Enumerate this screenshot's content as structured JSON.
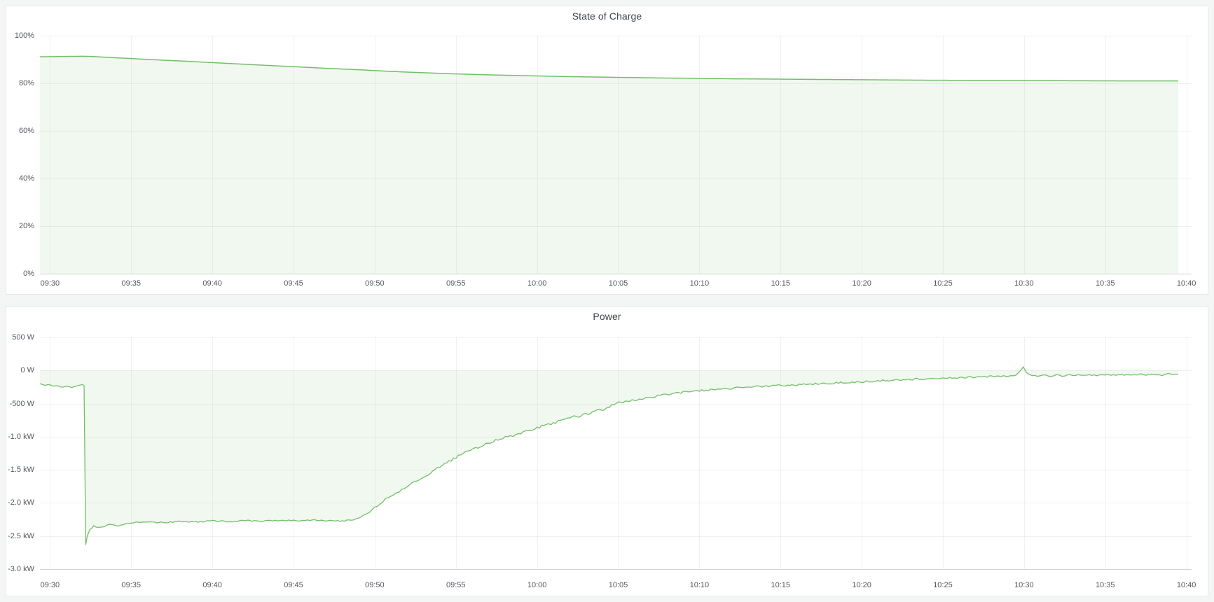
{
  "page": {
    "background_color": "#f4f5f5",
    "panel_background": "#ffffff",
    "panel_border_color": "#e4e8ea"
  },
  "chart_data": [
    {
      "type": "area",
      "title": "State of Charge",
      "legend": "none",
      "grid": true,
      "x_axis": {
        "domain": [
          -0.62,
          70.32
        ],
        "unit": "time",
        "tick_minutes": [
          0,
          5,
          10,
          15,
          20,
          25,
          30,
          35,
          40,
          45,
          50,
          55,
          60,
          65,
          70
        ],
        "tick_labels": [
          "09:30",
          "09:35",
          "09:40",
          "09:45",
          "09:50",
          "09:55",
          "10:00",
          "10:05",
          "10:10",
          "10:15",
          "10:20",
          "10:25",
          "10:30",
          "10:35",
          "10:40"
        ]
      },
      "y_axis": {
        "domain": [
          0,
          100
        ],
        "unit": "percent",
        "tick_values": [
          100,
          80,
          60,
          40,
          20,
          0
        ],
        "tick_labels": [
          "100%",
          "80%",
          "60%",
          "40%",
          "20%",
          "0%"
        ]
      },
      "style": {
        "grid_color": "rgba(0,0,0,0.055)",
        "axis_color": "rgba(0,0,0,0.12)"
      },
      "series": [
        {
          "name": "State of Charge",
          "line_color": "#73bf69",
          "fill_color": "rgba(115,191,105,0.11)",
          "line_width": 1.5,
          "points": [
            [
              -0.62,
              91.15
            ],
            [
              0,
              91.2
            ],
            [
              1,
              91.3
            ],
            [
              2,
              91.35
            ],
            [
              2.5,
              91.3
            ],
            [
              3,
              91.1
            ],
            [
              4,
              90.75
            ],
            [
              5,
              90.4
            ],
            [
              6,
              90.05
            ],
            [
              7,
              89.7
            ],
            [
              8,
              89.4
            ],
            [
              9,
              89.05
            ],
            [
              10,
              88.7
            ],
            [
              11,
              88.35
            ],
            [
              12,
              88.0
            ],
            [
              13,
              87.65
            ],
            [
              14,
              87.3
            ],
            [
              15,
              87.0
            ],
            [
              16,
              86.65
            ],
            [
              17,
              86.3
            ],
            [
              18,
              86.0
            ],
            [
              19,
              85.7
            ],
            [
              20,
              85.35
            ],
            [
              21,
              85.0
            ],
            [
              22,
              84.7
            ],
            [
              23,
              84.45
            ],
            [
              24,
              84.2
            ],
            [
              25,
              83.95
            ],
            [
              26,
              83.75
            ],
            [
              27,
              83.55
            ],
            [
              28,
              83.4
            ],
            [
              29,
              83.25
            ],
            [
              30,
              83.1
            ],
            [
              31,
              82.95
            ],
            [
              32,
              82.8
            ],
            [
              33,
              82.7
            ],
            [
              34,
              82.6
            ],
            [
              35,
              82.5
            ],
            [
              36,
              82.4
            ],
            [
              37,
              82.3
            ],
            [
              38,
              82.2
            ],
            [
              39,
              82.15
            ],
            [
              40,
              82.05
            ],
            [
              41,
              82.0
            ],
            [
              42,
              81.9
            ],
            [
              43,
              81.85
            ],
            [
              44,
              81.8
            ],
            [
              45,
              81.75
            ],
            [
              46,
              81.7
            ],
            [
              47,
              81.65
            ],
            [
              48,
              81.6
            ],
            [
              49,
              81.55
            ],
            [
              50,
              81.5
            ],
            [
              52,
              81.4
            ],
            [
              54,
              81.3
            ],
            [
              56,
              81.25
            ],
            [
              58,
              81.2
            ],
            [
              60,
              81.15
            ],
            [
              62,
              81.1
            ],
            [
              64,
              81.05
            ],
            [
              66,
              81.0
            ],
            [
              68,
              81.0
            ],
            [
              69.5,
              81.0
            ]
          ]
        }
      ]
    },
    {
      "type": "area",
      "title": "Power",
      "legend": "none",
      "grid": true,
      "x_axis": {
        "domain": [
          -0.62,
          70.32
        ],
        "unit": "time",
        "tick_minutes": [
          0,
          5,
          10,
          15,
          20,
          25,
          30,
          35,
          40,
          45,
          50,
          55,
          60,
          65,
          70
        ],
        "tick_labels": [
          "09:30",
          "09:35",
          "09:40",
          "09:45",
          "09:50",
          "09:55",
          "10:00",
          "10:05",
          "10:10",
          "10:15",
          "10:20",
          "10:25",
          "10:30",
          "10:35",
          "10:40"
        ]
      },
      "y_axis": {
        "domain": [
          -3000,
          500
        ],
        "unit": "watts",
        "tick_values": [
          500,
          0,
          -500,
          -1000,
          -1500,
          -2000,
          -2500,
          -3000
        ],
        "tick_labels": [
          "500 W",
          "0 W",
          "-500 W",
          "-1.0 kW",
          "-1.5 kW",
          "-2.0 kW",
          "-2.5 kW",
          "-3.0 kW"
        ]
      },
      "style": {
        "grid_color": "rgba(0,0,0,0.055)",
        "axis_color": "rgba(0,0,0,0.12)"
      },
      "series": [
        {
          "name": "Power",
          "line_color": "#73bf69",
          "fill_color": "rgba(115,191,105,0.11)",
          "line_width": 1.3,
          "points": [
            [
              -0.62,
              -210,
              12
            ],
            [
              0,
              -225,
              13
            ],
            [
              0.5,
              -242,
              14
            ],
            [
              1,
              -238,
              15
            ],
            [
              1.5,
              -248,
              13
            ],
            [
              1.85,
              -228,
              8
            ],
            [
              2.0,
              -210,
              5
            ],
            [
              2.1,
              -230,
              0
            ],
            [
              2.2,
              -2630,
              0
            ],
            [
              2.3,
              -2500,
              4
            ],
            [
              2.45,
              -2405,
              8
            ],
            [
              2.7,
              -2350,
              10
            ],
            [
              3.1,
              -2365,
              11
            ],
            [
              3.6,
              -2330,
              10
            ],
            [
              4.2,
              -2345,
              10
            ],
            [
              5,
              -2300,
              10
            ],
            [
              6,
              -2292,
              10
            ],
            [
              7,
              -2298,
              10
            ],
            [
              8,
              -2282,
              10
            ],
            [
              9,
              -2288,
              10
            ],
            [
              10,
              -2272,
              10
            ],
            [
              11,
              -2280,
              10
            ],
            [
              12,
              -2268,
              10
            ],
            [
              13,
              -2276,
              10
            ],
            [
              14,
              -2264,
              10
            ],
            [
              15,
              -2270,
              10
            ],
            [
              16,
              -2258,
              10
            ],
            [
              17,
              -2266,
              10
            ],
            [
              18,
              -2272,
              10
            ],
            [
              18.7,
              -2262,
              9
            ],
            [
              19.2,
              -2210,
              12
            ],
            [
              19.6,
              -2145,
              15
            ],
            [
              20,
              -2070,
              16
            ],
            [
              20.5,
              -1975,
              16
            ],
            [
              21,
              -1892,
              17
            ],
            [
              21.5,
              -1838,
              18
            ],
            [
              22,
              -1755,
              18
            ],
            [
              22.5,
              -1682,
              18
            ],
            [
              23,
              -1612,
              18
            ],
            [
              23.7,
              -1502,
              18
            ],
            [
              24.3,
              -1415,
              18
            ],
            [
              25,
              -1312,
              18
            ],
            [
              25.6,
              -1242,
              18
            ],
            [
              26.2,
              -1172,
              18
            ],
            [
              27,
              -1092,
              19
            ],
            [
              27.6,
              -1042,
              19
            ],
            [
              28.2,
              -1002,
              20
            ],
            [
              29,
              -948,
              20
            ],
            [
              30,
              -862,
              20
            ],
            [
              31,
              -792,
              20
            ],
            [
              32,
              -722,
              21
            ],
            [
              33,
              -658,
              22
            ],
            [
              34,
              -592,
              22
            ],
            [
              34.6,
              -532,
              20
            ],
            [
              35,
              -492,
              19
            ],
            [
              36,
              -442,
              18
            ],
            [
              37,
              -398,
              18
            ],
            [
              38,
              -362,
              17
            ],
            [
              39,
              -332,
              16
            ],
            [
              40,
              -306,
              16
            ],
            [
              41,
              -286,
              16
            ],
            [
              42,
              -268,
              16
            ],
            [
              43,
              -252,
              16
            ],
            [
              44,
              -238,
              15
            ],
            [
              45,
              -226,
              15
            ],
            [
              46,
              -214,
              15
            ],
            [
              47,
              -203,
              14
            ],
            [
              48,
              -192,
              14
            ],
            [
              49,
              -181,
              14
            ],
            [
              50,
              -168,
              14
            ],
            [
              51,
              -154,
              14
            ],
            [
              52,
              -143,
              14
            ],
            [
              53,
              -133,
              14
            ],
            [
              54,
              -124,
              14
            ],
            [
              55,
              -116,
              14
            ],
            [
              56,
              -107,
              14
            ],
            [
              57,
              -98,
              13
            ],
            [
              58,
              -91,
              13
            ],
            [
              59,
              -86,
              12
            ],
            [
              59.5,
              -70,
              8
            ],
            [
              59.75,
              -10,
              0
            ],
            [
              59.95,
              55,
              0
            ],
            [
              60.15,
              -35,
              5
            ],
            [
              60.5,
              -88,
              13
            ],
            [
              61,
              -72,
              13
            ],
            [
              61.5,
              -84,
              13
            ],
            [
              62,
              -68,
              13
            ],
            [
              62.5,
              -80,
              13
            ],
            [
              63,
              -64,
              13
            ],
            [
              63.5,
              -78,
              13
            ],
            [
              64,
              -66,
              13
            ],
            [
              64.5,
              -76,
              12
            ],
            [
              65,
              -60,
              12
            ],
            [
              65.5,
              -72,
              12
            ],
            [
              66,
              -62,
              12
            ],
            [
              66.5,
              -74,
              12
            ],
            [
              67,
              -56,
              12
            ],
            [
              67.5,
              -68,
              12
            ],
            [
              68,
              -58,
              12
            ],
            [
              68.5,
              -66,
              11
            ],
            [
              69,
              -50,
              11
            ],
            [
              69.5,
              -58,
              10
            ]
          ]
        }
      ]
    }
  ]
}
